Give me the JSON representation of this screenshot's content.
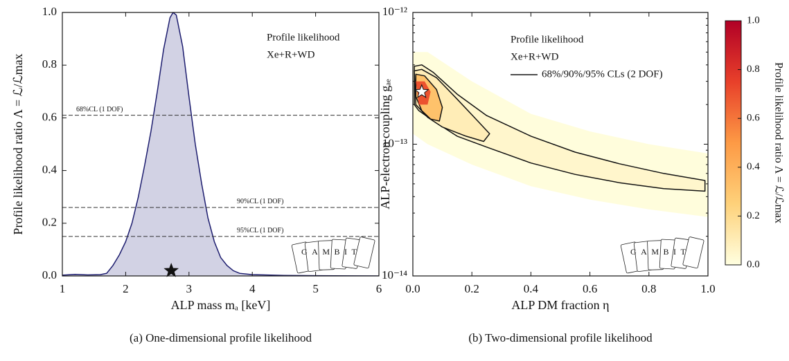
{
  "chart_data": [
    {
      "type": "area",
      "caption": "(a) One-dimensional profile likelihood",
      "xlabel": "ALP mass mₐ [keV]",
      "ylabel": "Profile likelihood ratio Λ = ℒ/ℒmax",
      "notes": [
        "Profile likelihood",
        "Xe+R+WD"
      ],
      "logo": "GAMBIT",
      "xlim": [
        1,
        6
      ],
      "ylim": [
        0,
        1
      ],
      "xticks": [
        1,
        2,
        3,
        4,
        5,
        6
      ],
      "yticks": [
        {
          "value": 0,
          "label": "0.0"
        },
        0.2,
        0.4,
        0.6,
        0.8,
        {
          "value": 1,
          "label": "1.0"
        }
      ],
      "line_color": "#1c1c6e",
      "fill_color": "#d2d2e4",
      "x": [
        1.0,
        1.2,
        1.4,
        1.6,
        1.7,
        1.8,
        1.9,
        2.0,
        2.1,
        2.2,
        2.3,
        2.4,
        2.5,
        2.6,
        2.7,
        2.75,
        2.8,
        2.9,
        3.0,
        3.1,
        3.2,
        3.3,
        3.4,
        3.5,
        3.6,
        3.7,
        3.8,
        4.0,
        4.5,
        5.0,
        6.0
      ],
      "y": [
        0.003,
        0.006,
        0.004,
        0.005,
        0.01,
        0.04,
        0.08,
        0.13,
        0.2,
        0.3,
        0.42,
        0.55,
        0.7,
        0.86,
        0.98,
        1.0,
        0.99,
        0.87,
        0.68,
        0.5,
        0.35,
        0.22,
        0.13,
        0.07,
        0.04,
        0.02,
        0.01,
        0.005,
        0.002,
        0.001,
        0.0
      ],
      "cl_lines": [
        {
          "value": 0.61,
          "label": "68%CL (1 DOF)"
        },
        {
          "value": 0.26,
          "label": "90%CL (1 DOF)"
        },
        {
          "value": 0.15,
          "label": "95%CL (1 DOF)"
        }
      ],
      "best_fit": {
        "x": 2.72,
        "y": 0.02,
        "color": "#111111"
      }
    },
    {
      "type": "contour",
      "caption": "(b) Two-dimensional profile likelihood",
      "xlabel": "ALP DM fraction η",
      "ylabel": "ALP-electron coupling gₐₑ",
      "notes": [
        "Profile likelihood",
        "Xe+R+WD"
      ],
      "legend": "68%/90%/95% CLs (2 DOF)",
      "logo": "GAMBIT",
      "xlim": [
        0,
        1
      ],
      "ylim": [
        1e-14,
        1e-12
      ],
      "ylog": true,
      "xticks": [
        {
          "value": 0,
          "label": "0.0"
        },
        0.2,
        0.4,
        0.6,
        0.8,
        {
          "value": 1,
          "label": "1.0"
        }
      ],
      "yticks": [
        {
          "value": 1e-14,
          "label": "10⁻¹⁴"
        },
        {
          "value": 1e-13,
          "label": "10⁻¹³"
        },
        {
          "value": 1e-12,
          "label": "10⁻¹²"
        }
      ],
      "contour_color": "#111111",
      "colormap": [
        "#ffffe0",
        "#fed17a",
        "#fd9a45",
        "#e8402a",
        "#b10026"
      ],
      "clim": [
        0,
        1
      ],
      "clabel": "Profile likelihood ratio Λ = ℒ/ℒmax",
      "cticks": [
        {
          "value": 0,
          "label": "0.0"
        },
        0.2,
        0.4,
        0.6,
        0.8,
        {
          "value": 1,
          "label": "1.0"
        }
      ],
      "regions": [
        {
          "level": 0.01,
          "contour": false,
          "x": [
            0,
            0.05,
            0.2,
            0.4,
            0.6,
            0.8,
            1.0,
            1.0,
            0.8,
            0.6,
            0.4,
            0.2,
            0.05,
            0
          ],
          "y": [
            5e-13,
            5e-13,
            3e-13,
            1.7e-13,
            1.25e-13,
            1e-13,
            8.5e-14,
            2.8e-14,
            3.2e-14,
            3.8e-14,
            4.8e-14,
            7e-14,
            1e-13,
            1.2e-13
          ]
        },
        {
          "level": 0.05,
          "contour": true,
          "x": [
            0.005,
            0.03,
            0.07,
            0.15,
            0.25,
            0.4,
            0.55,
            0.7,
            0.85,
            0.99,
            0.99,
            0.85,
            0.7,
            0.55,
            0.4,
            0.25,
            0.15,
            0.07,
            0.02,
            0.005
          ],
          "y": [
            3.9e-13,
            4e-13,
            3.5e-13,
            2.4e-13,
            1.65e-13,
            1.15e-13,
            8.7e-14,
            7.1e-14,
            6e-14,
            5.3e-14,
            4.4e-14,
            4.6e-14,
            5.1e-14,
            5.9e-14,
            7.2e-14,
            9.5e-14,
            1.15e-13,
            1.5e-13,
            1.8e-13,
            2e-13
          ]
        },
        {
          "level": 0.1,
          "contour": true,
          "x": [
            0.005,
            0.03,
            0.08,
            0.15,
            0.22,
            0.26,
            0.24,
            0.18,
            0.1,
            0.05,
            0.01
          ],
          "y": [
            3.6e-13,
            3.7e-13,
            3.2e-13,
            2.2e-13,
            1.5e-13,
            1.2e-13,
            1.05e-13,
            1.15e-13,
            1.35e-13,
            1.6e-13,
            2e-13
          ]
        },
        {
          "level": 0.32,
          "contour": true,
          "x": [
            0.01,
            0.04,
            0.08,
            0.1,
            0.09,
            0.06,
            0.03,
            0.01
          ],
          "y": [
            3.4e-13,
            3.3e-13,
            2.6e-13,
            1.9e-13,
            1.5e-13,
            1.55e-13,
            1.8e-13,
            2.3e-13
          ]
        },
        {
          "level": 0.7,
          "contour": false,
          "x": [
            0.01,
            0.04,
            0.06,
            0.05,
            0.02
          ],
          "y": [
            3e-13,
            3e-13,
            2.5e-13,
            2e-13,
            2e-13
          ]
        }
      ],
      "best_fit": {
        "x": 0.03,
        "y": 2.5e-13,
        "color": "#ffffff"
      }
    }
  ]
}
